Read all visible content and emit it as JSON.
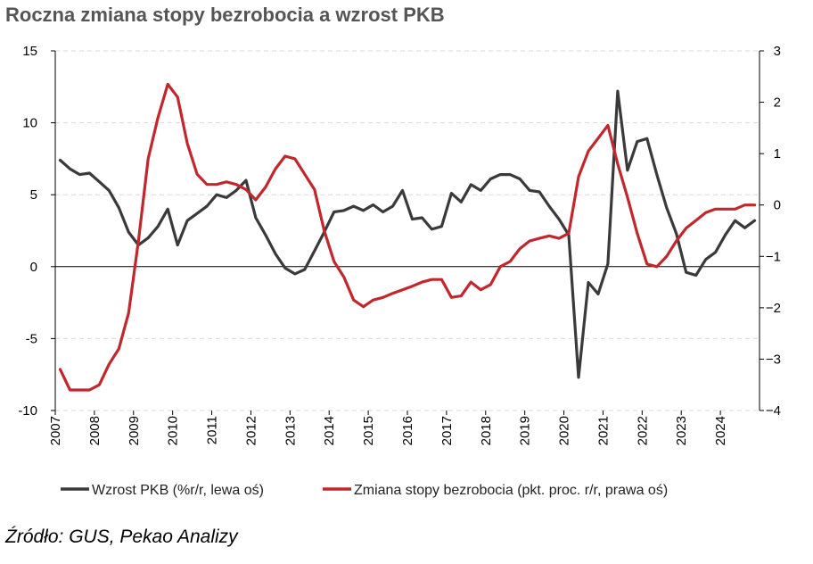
{
  "title": "Roczna zmiana stopy bezrobocia a wzrost PKB",
  "source": "Źródło: GUS, Pekao Analizy",
  "colors": {
    "gdp": "#3a3a3a",
    "unemployment": "#c0282d",
    "grid": "#d9d9d9",
    "axis": "#000000"
  },
  "chart_data": {
    "type": "line",
    "x_start": "2007Q1",
    "x_tick_labels": [
      "2007",
      "2008",
      "2009",
      "2010",
      "2011",
      "2012",
      "2013",
      "2014",
      "2015",
      "2016",
      "2017",
      "2018",
      "2019",
      "2020",
      "2021",
      "2022",
      "2023",
      "2024"
    ],
    "left_axis": {
      "ylim": [
        -10,
        15
      ],
      "ticks": [
        "15",
        "10",
        "5",
        "0",
        "-5",
        "-10"
      ]
    },
    "right_axis": {
      "ylim": [
        -4,
        3
      ],
      "ticks": [
        "3",
        "2",
        "1",
        "0",
        "−1",
        "−2",
        "−3",
        "−4"
      ]
    },
    "grid": "horizontal dashed",
    "legend_position": "bottom",
    "series": [
      {
        "name": "Wzrost PKB (%r/r, lewa oś)",
        "axis": "left",
        "values": [
          7.4,
          6.8,
          6.4,
          6.5,
          5.9,
          5.3,
          4.1,
          2.4,
          1.5,
          2.0,
          2.8,
          4.0,
          1.5,
          3.2,
          3.7,
          4.2,
          5.0,
          4.8,
          5.3,
          6.0,
          3.4,
          2.2,
          0.9,
          -0.1,
          -0.5,
          -0.2,
          1.1,
          2.4,
          3.8,
          3.9,
          4.2,
          3.9,
          4.3,
          3.8,
          4.2,
          5.3,
          3.3,
          3.4,
          2.6,
          2.8,
          5.1,
          4.5,
          5.7,
          5.3,
          6.1,
          6.4,
          6.4,
          6.1,
          5.3,
          5.2,
          4.2,
          3.3,
          2.2,
          -7.7,
          -1.1,
          -1.9,
          0.2,
          12.2,
          6.7,
          8.7,
          8.9,
          6.4,
          4.1,
          2.3,
          -0.4,
          -0.6,
          0.5,
          1.0,
          2.2,
          3.2,
          2.7,
          3.2
        ]
      },
      {
        "name": "Zmiana stopy bezrobocia (pkt. proc. r/r, prawa oś)",
        "axis": "right",
        "values": [
          -3.2,
          -3.6,
          -3.6,
          -3.6,
          -3.5,
          -3.1,
          -2.8,
          -2.1,
          -0.7,
          0.9,
          1.7,
          2.35,
          2.1,
          1.2,
          0.6,
          0.4,
          0.4,
          0.45,
          0.4,
          0.3,
          0.1,
          0.35,
          0.7,
          0.95,
          0.9,
          0.6,
          0.3,
          -0.5,
          -1.1,
          -1.4,
          -1.85,
          -1.98,
          -1.85,
          -1.8,
          -1.72,
          -1.65,
          -1.58,
          -1.5,
          -1.45,
          -1.45,
          -1.8,
          -1.77,
          -1.5,
          -1.65,
          -1.55,
          -1.2,
          -1.1,
          -0.85,
          -0.7,
          -0.65,
          -0.6,
          -0.65,
          -0.55,
          0.55,
          1.05,
          1.3,
          1.55,
          0.8,
          0.15,
          -0.55,
          -1.15,
          -1.2,
          -1.0,
          -0.7,
          -0.45,
          -0.3,
          -0.15,
          -0.08,
          -0.08,
          -0.08,
          0.0,
          0.0
        ]
      }
    ]
  }
}
